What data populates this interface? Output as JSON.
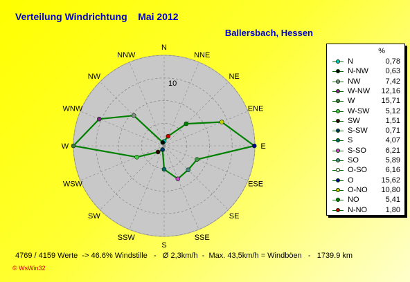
{
  "title": "Verteilung Windrichtung    Mai 2012",
  "subtitle": "Ballersbach, Hessen",
  "legend_header": "%",
  "footer": "4769 / 4159 Werte  -> 46.6% Windstille   -   Ø 2,3km/h  -  Max. 43,5km/h = Windböen   -   1739.9 km",
  "brand": "© WsWin32",
  "colors": {
    "line": "#008000",
    "disc": "#c8c8c8",
    "grid": "#888888",
    "label": "#000000"
  },
  "chart_data": {
    "type": "radar",
    "title": "Verteilung Windrichtung    Mai 2012",
    "unit": "%",
    "ring_labels": [
      "10"
    ],
    "rmax": 15.71,
    "ring_values": [
      3.93,
      7.86,
      11.78,
      15.71
    ],
    "directions": [
      "N",
      "NNE",
      "NE",
      "ENE",
      "E",
      "ESE",
      "SE",
      "SSE",
      "S",
      "SSW",
      "SW",
      "WSW",
      "W",
      "WNW",
      "NW",
      "NNW"
    ],
    "values": [
      0.78,
      1.8,
      5.41,
      10.8,
      15.62,
      6.16,
      5.89,
      6.21,
      4.07,
      0.71,
      1.51,
      5.12,
      15.71,
      12.16,
      7.42,
      0.63
    ],
    "point_colors": [
      "#00cccc",
      "#cc0000",
      "#008000",
      "#cccc00",
      "#000099",
      "#449944",
      "#448888",
      "#cc44cc",
      "#006666",
      "#003366",
      "#330000",
      "#44cc44",
      "#447744",
      "#882288",
      "#888888",
      "#000000"
    ]
  },
  "legend": [
    {
      "name": "N",
      "value": "0,78",
      "color": "#00cccc"
    },
    {
      "name": "N-NW",
      "value": "0,63",
      "color": "#000000"
    },
    {
      "name": "NW",
      "value": "7,42",
      "color": "#888888"
    },
    {
      "name": "W-NW",
      "value": "12,16",
      "color": "#882288"
    },
    {
      "name": "W",
      "value": "15,71",
      "color": "#447744"
    },
    {
      "name": "W-SW",
      "value": "5,12",
      "color": "#44cc44"
    },
    {
      "name": "SW",
      "value": "1,51",
      "color": "#330000"
    },
    {
      "name": "S-SW",
      "value": "0,71",
      "color": "#003366"
    },
    {
      "name": "S",
      "value": "4,07",
      "color": "#006666"
    },
    {
      "name": "S-SO",
      "value": "6,21",
      "color": "#cc44cc"
    },
    {
      "name": "SO",
      "value": "5,89",
      "color": "#448888"
    },
    {
      "name": "O-SO",
      "value": "6,16",
      "color": "#ffffff"
    },
    {
      "name": "O",
      "value": "15,62",
      "color": "#000099"
    },
    {
      "name": "O-NO",
      "value": "10,80",
      "color": "#cccc00"
    },
    {
      "name": "NO",
      "value": "5,41",
      "color": "#008000"
    },
    {
      "name": "N-NO",
      "value": "1,80",
      "color": "#cc0000"
    }
  ]
}
